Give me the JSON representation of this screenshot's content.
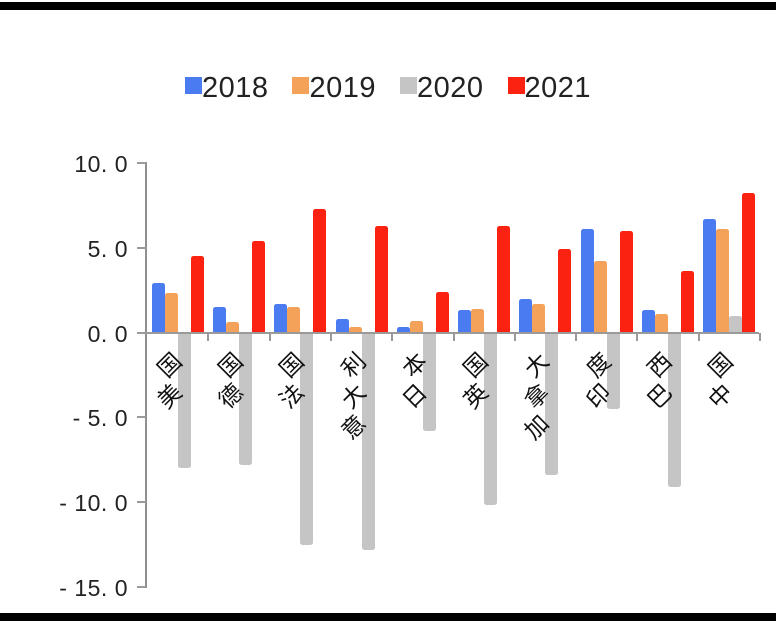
{
  "accent_colors": {
    "frame_bar": "#000000",
    "axis": "#9a9a9a",
    "text": "#222222"
  },
  "legend": {
    "items": [
      {
        "label": "2018",
        "color": "#4a7bf0"
      },
      {
        "label": "2019",
        "color": "#f4a25a"
      },
      {
        "label": "2020",
        "color": "#c5c5c5"
      },
      {
        "label": "2021",
        "color": "#fb2212"
      }
    ]
  },
  "chart_data": {
    "type": "bar",
    "title": "",
    "xlabel": "",
    "ylabel": "",
    "legend_position": "top",
    "grid": false,
    "categories": [
      "美国",
      "德国",
      "法国",
      "意大利",
      "日本",
      "英国",
      "加拿大",
      "印度",
      "巴西",
      "中国"
    ],
    "category_keys": [
      "usa",
      "germany",
      "france",
      "italy",
      "japan",
      "uk",
      "canada",
      "india",
      "brazil",
      "china"
    ],
    "series": [
      {
        "name": "2018",
        "color": "#4a7bf0",
        "values": [
          2.9,
          1.5,
          1.7,
          0.8,
          0.3,
          1.3,
          2.0,
          6.1,
          1.3,
          6.7
        ]
      },
      {
        "name": "2019",
        "color": "#f4a25a",
        "values": [
          2.3,
          0.6,
          1.5,
          0.3,
          0.7,
          1.4,
          1.7,
          4.2,
          1.1,
          6.1
        ]
      },
      {
        "name": "2020",
        "color": "#c5c5c5",
        "values": [
          -8.0,
          -7.8,
          -12.5,
          -12.8,
          -5.8,
          -10.2,
          -8.4,
          -4.5,
          -9.1,
          1.0
        ]
      },
      {
        "name": "2021",
        "color": "#fb2212",
        "values": [
          4.5,
          5.4,
          7.3,
          6.3,
          2.4,
          6.3,
          4.9,
          6.0,
          3.6,
          8.2
        ]
      }
    ],
    "y_axis": {
      "ylim": [
        -15.0,
        10.0
      ],
      "tick_step": 5.0,
      "ticks": [
        10,
        5,
        0,
        -5,
        -10,
        -15
      ],
      "tick_labels": [
        "10. 0",
        "5. 0",
        "0. 0",
        "- 5. 0",
        "- 10. 0",
        "- 15. 0"
      ]
    }
  }
}
